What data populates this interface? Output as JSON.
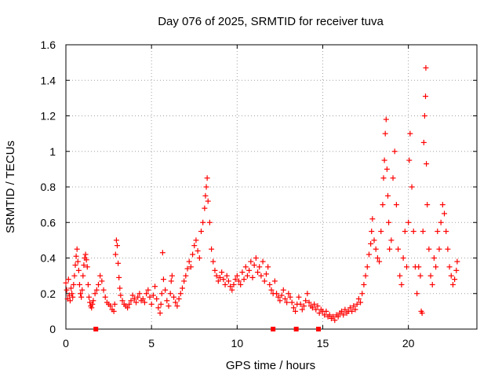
{
  "chart_data": {
    "type": "scatter",
    "title": "Day 076 of 2025, SRMTID for receiver tuva",
    "xlabel": "GPS time / hours",
    "ylabel": "SRMTID / TECUs",
    "xlim": [
      0,
      24
    ],
    "ylim": [
      0,
      1.6
    ],
    "x_ticks": [
      0,
      5,
      10,
      15,
      20
    ],
    "x_tick_labels": [
      "0",
      "5",
      "10",
      "15",
      "20"
    ],
    "y_ticks": [
      0,
      0.2,
      0.4,
      0.6,
      0.8,
      1.0,
      1.2,
      1.4,
      1.6
    ],
    "y_tick_labels": [
      "0",
      "0.2",
      "0.4",
      "0.6",
      "0.8",
      "1",
      "1.2",
      "1.4",
      "1.6"
    ],
    "grid": true,
    "marker": "plus",
    "color": "#ff0000",
    "series": [
      {
        "name": "SRMTID",
        "points": [
          [
            0.0,
            0.26
          ],
          [
            0.05,
            0.22
          ],
          [
            0.1,
            0.17
          ],
          [
            0.15,
            0.28
          ],
          [
            0.2,
            0.19
          ],
          [
            0.25,
            0.16
          ],
          [
            0.3,
            0.23
          ],
          [
            0.35,
            0.2
          ],
          [
            0.4,
            0.18
          ],
          [
            0.45,
            0.25
          ],
          [
            0.5,
            0.3
          ],
          [
            0.55,
            0.36
          ],
          [
            0.6,
            0.41
          ],
          [
            0.65,
            0.45
          ],
          [
            0.7,
            0.38
          ],
          [
            0.75,
            0.33
          ],
          [
            0.8,
            0.25
          ],
          [
            0.85,
            0.2
          ],
          [
            0.9,
            0.18
          ],
          [
            0.95,
            0.22
          ],
          [
            1.0,
            0.3
          ],
          [
            1.05,
            0.36
          ],
          [
            1.1,
            0.4
          ],
          [
            1.15,
            0.42
          ],
          [
            1.2,
            0.39
          ],
          [
            1.25,
            0.35
          ],
          [
            1.3,
            0.25
          ],
          [
            1.35,
            0.18
          ],
          [
            1.4,
            0.15
          ],
          [
            1.45,
            0.13
          ],
          [
            1.5,
            0.12
          ],
          [
            1.55,
            0.14
          ],
          [
            1.6,
            0.16
          ],
          [
            1.7,
            0.2
          ],
          [
            1.8,
            0.22
          ],
          [
            1.9,
            0.25
          ],
          [
            2.0,
            0.3
          ],
          [
            2.1,
            0.27
          ],
          [
            2.2,
            0.22
          ],
          [
            2.3,
            0.18
          ],
          [
            2.4,
            0.15
          ],
          [
            2.5,
            0.14
          ],
          [
            2.6,
            0.13
          ],
          [
            2.7,
            0.11
          ],
          [
            2.8,
            0.1
          ],
          [
            2.85,
            0.14
          ],
          [
            2.9,
            0.42
          ],
          [
            2.95,
            0.5
          ],
          [
            3.0,
            0.47
          ],
          [
            3.05,
            0.37
          ],
          [
            3.1,
            0.29
          ],
          [
            3.15,
            0.23
          ],
          [
            3.2,
            0.19
          ],
          [
            3.3,
            0.16
          ],
          [
            3.4,
            0.14
          ],
          [
            3.5,
            0.13
          ],
          [
            3.6,
            0.12
          ],
          [
            3.7,
            0.14
          ],
          [
            3.8,
            0.16
          ],
          [
            3.9,
            0.19
          ],
          [
            4.0,
            0.17
          ],
          [
            4.1,
            0.15
          ],
          [
            4.2,
            0.18
          ],
          [
            4.3,
            0.2
          ],
          [
            4.4,
            0.16
          ],
          [
            4.5,
            0.17
          ],
          [
            4.6,
            0.15
          ],
          [
            4.7,
            0.2
          ],
          [
            4.8,
            0.22
          ],
          [
            4.9,
            0.18
          ],
          [
            5.0,
            0.14
          ],
          [
            5.1,
            0.19
          ],
          [
            5.2,
            0.24
          ],
          [
            5.3,
            0.17
          ],
          [
            5.4,
            0.12
          ],
          [
            5.5,
            0.09
          ],
          [
            5.55,
            0.14
          ],
          [
            5.6,
            0.2
          ],
          [
            5.65,
            0.43
          ],
          [
            5.7,
            0.28
          ],
          [
            5.8,
            0.22
          ],
          [
            5.9,
            0.16
          ],
          [
            6.0,
            0.13
          ],
          [
            6.1,
            0.2
          ],
          [
            6.15,
            0.27
          ],
          [
            6.2,
            0.3
          ],
          [
            6.3,
            0.18
          ],
          [
            6.4,
            0.15
          ],
          [
            6.5,
            0.13
          ],
          [
            6.6,
            0.17
          ],
          [
            6.7,
            0.2
          ],
          [
            6.8,
            0.23
          ],
          [
            6.9,
            0.27
          ],
          [
            7.0,
            0.3
          ],
          [
            7.1,
            0.34
          ],
          [
            7.2,
            0.38
          ],
          [
            7.3,
            0.35
          ],
          [
            7.4,
            0.42
          ],
          [
            7.5,
            0.47
          ],
          [
            7.6,
            0.5
          ],
          [
            7.7,
            0.44
          ],
          [
            7.8,
            0.4
          ],
          [
            7.9,
            0.55
          ],
          [
            8.0,
            0.6
          ],
          [
            8.1,
            0.68
          ],
          [
            8.15,
            0.75
          ],
          [
            8.2,
            0.8
          ],
          [
            8.25,
            0.85
          ],
          [
            8.3,
            0.72
          ],
          [
            8.4,
            0.6
          ],
          [
            8.5,
            0.45
          ],
          [
            8.6,
            0.38
          ],
          [
            8.7,
            0.33
          ],
          [
            8.8,
            0.3
          ],
          [
            8.9,
            0.27
          ],
          [
            9.0,
            0.29
          ],
          [
            9.1,
            0.32
          ],
          [
            9.2,
            0.28
          ],
          [
            9.3,
            0.25
          ],
          [
            9.4,
            0.3
          ],
          [
            9.5,
            0.27
          ],
          [
            9.6,
            0.24
          ],
          [
            9.7,
            0.22
          ],
          [
            9.8,
            0.25
          ],
          [
            9.9,
            0.28
          ],
          [
            10.0,
            0.3
          ],
          [
            10.1,
            0.27
          ],
          [
            10.2,
            0.25
          ],
          [
            10.3,
            0.32
          ],
          [
            10.4,
            0.28
          ],
          [
            10.5,
            0.35
          ],
          [
            10.6,
            0.3
          ],
          [
            10.7,
            0.33
          ],
          [
            10.8,
            0.38
          ],
          [
            10.9,
            0.29
          ],
          [
            11.0,
            0.36
          ],
          [
            11.1,
            0.4
          ],
          [
            11.2,
            0.32
          ],
          [
            11.3,
            0.35
          ],
          [
            11.4,
            0.3
          ],
          [
            11.5,
            0.38
          ],
          [
            11.6,
            0.27
          ],
          [
            11.7,
            0.31
          ],
          [
            11.8,
            0.35
          ],
          [
            11.9,
            0.25
          ],
          [
            12.0,
            0.22
          ],
          [
            12.1,
            0.2
          ],
          [
            12.2,
            0.27
          ],
          [
            12.3,
            0.2
          ],
          [
            12.4,
            0.18
          ],
          [
            12.5,
            0.16
          ],
          [
            12.6,
            0.19
          ],
          [
            12.7,
            0.22
          ],
          [
            12.8,
            0.17
          ],
          [
            12.9,
            0.15
          ],
          [
            13.0,
            0.2
          ],
          [
            13.1,
            0.18
          ],
          [
            13.2,
            0.15
          ],
          [
            13.3,
            0.12
          ],
          [
            13.4,
            0.1
          ],
          [
            13.5,
            0.14
          ],
          [
            13.6,
            0.18
          ],
          [
            13.7,
            0.14
          ],
          [
            13.8,
            0.11
          ],
          [
            13.9,
            0.13
          ],
          [
            14.0,
            0.16
          ],
          [
            14.1,
            0.2
          ],
          [
            14.2,
            0.15
          ],
          [
            14.3,
            0.13
          ],
          [
            14.4,
            0.12
          ],
          [
            14.5,
            0.14
          ],
          [
            14.6,
            0.11
          ],
          [
            14.7,
            0.13
          ],
          [
            14.8,
            0.09
          ],
          [
            14.9,
            0.11
          ],
          [
            15.0,
            0.1
          ],
          [
            15.1,
            0.08
          ],
          [
            15.2,
            0.1
          ],
          [
            15.3,
            0.07
          ],
          [
            15.4,
            0.08
          ],
          [
            15.5,
            0.06
          ],
          [
            15.6,
            0.07
          ],
          [
            15.7,
            0.05
          ],
          [
            15.8,
            0.08
          ],
          [
            15.9,
            0.07
          ],
          [
            16.0,
            0.09
          ],
          [
            16.1,
            0.1
          ],
          [
            16.2,
            0.08
          ],
          [
            16.3,
            0.11
          ],
          [
            16.4,
            0.09
          ],
          [
            16.5,
            0.1
          ],
          [
            16.6,
            0.12
          ],
          [
            16.7,
            0.1
          ],
          [
            16.8,
            0.13
          ],
          [
            16.9,
            0.11
          ],
          [
            17.0,
            0.14
          ],
          [
            17.1,
            0.17
          ],
          [
            17.2,
            0.15
          ],
          [
            17.3,
            0.2
          ],
          [
            17.4,
            0.25
          ],
          [
            17.5,
            0.3
          ],
          [
            17.6,
            0.35
          ],
          [
            17.7,
            0.42
          ],
          [
            17.8,
            0.48
          ],
          [
            17.85,
            0.55
          ],
          [
            17.9,
            0.62
          ],
          [
            18.0,
            0.5
          ],
          [
            18.1,
            0.45
          ],
          [
            18.2,
            0.4
          ],
          [
            18.3,
            0.38
          ],
          [
            18.4,
            0.55
          ],
          [
            18.5,
            0.7
          ],
          [
            18.55,
            0.85
          ],
          [
            18.6,
            0.95
          ],
          [
            18.65,
            1.1
          ],
          [
            18.7,
            1.18
          ],
          [
            18.75,
            0.9
          ],
          [
            18.8,
            0.75
          ],
          [
            18.85,
            0.6
          ],
          [
            18.9,
            0.45
          ],
          [
            19.0,
            0.5
          ],
          [
            19.1,
            0.85
          ],
          [
            19.2,
            1.0
          ],
          [
            19.3,
            0.7
          ],
          [
            19.4,
            0.45
          ],
          [
            19.5,
            0.3
          ],
          [
            19.6,
            0.25
          ],
          [
            19.7,
            0.4
          ],
          [
            19.8,
            0.55
          ],
          [
            19.9,
            0.35
          ],
          [
            20.0,
            0.6
          ],
          [
            20.05,
            0.95
          ],
          [
            20.1,
            1.1
          ],
          [
            20.2,
            0.8
          ],
          [
            20.3,
            0.55
          ],
          [
            20.4,
            0.35
          ],
          [
            20.5,
            0.2
          ],
          [
            20.6,
            0.35
          ],
          [
            20.7,
            0.3
          ],
          [
            20.75,
            0.1
          ],
          [
            20.8,
            0.09
          ],
          [
            20.85,
            0.55
          ],
          [
            20.9,
            1.05
          ],
          [
            20.95,
            1.2
          ],
          [
            21.0,
            1.31
          ],
          [
            21.02,
            1.47
          ],
          [
            21.05,
            0.93
          ],
          [
            21.1,
            0.7
          ],
          [
            21.2,
            0.45
          ],
          [
            21.3,
            0.3
          ],
          [
            21.4,
            0.25
          ],
          [
            21.5,
            0.4
          ],
          [
            21.6,
            0.35
          ],
          [
            21.7,
            0.55
          ],
          [
            21.8,
            0.45
          ],
          [
            21.9,
            0.6
          ],
          [
            22.0,
            0.7
          ],
          [
            22.1,
            0.65
          ],
          [
            22.2,
            0.55
          ],
          [
            22.3,
            0.45
          ],
          [
            22.4,
            0.35
          ],
          [
            22.5,
            0.3
          ],
          [
            22.6,
            0.25
          ],
          [
            22.7,
            0.28
          ],
          [
            22.8,
            0.33
          ],
          [
            22.85,
            0.38
          ]
        ]
      }
    ],
    "zero_markers_x": [
      1.75,
      12.1,
      13.45,
      14.75
    ]
  }
}
